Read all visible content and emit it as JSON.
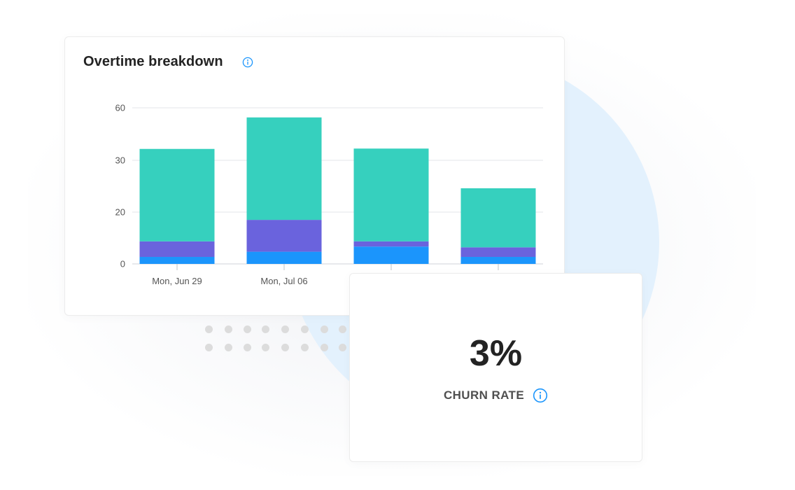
{
  "chart_card": {
    "title": "Overtime breakdown",
    "info_icon": "info-icon"
  },
  "churn_card": {
    "value": "3%",
    "label": "CHURN RATE",
    "info_icon": "info-icon"
  },
  "colors": {
    "teal": "#36d0be",
    "purple": "#6a63dd",
    "blue": "#1b95fc",
    "accent": "#1b95fc",
    "circle": "#e3f1fd"
  },
  "chart_data": {
    "type": "bar",
    "stacked": true,
    "title": "Overtime breakdown",
    "xlabel": "",
    "ylabel": "",
    "y_ticks": [
      "60",
      "30",
      "20",
      "0"
    ],
    "categories": [
      "Mon, Jun 29",
      "Mon, Jul 06",
      "",
      ""
    ],
    "series": [
      {
        "color": "#1b95fc",
        "values": [
          2.7,
          4.7,
          6.7,
          2.7
        ]
      },
      {
        "color": "#6a63dd",
        "values": [
          6.0,
          12.3,
          2.0,
          3.7
        ]
      },
      {
        "color": "#36d0be",
        "values": [
          27.8,
          37.5,
          28.0,
          18.2
        ]
      }
    ],
    "grid": true,
    "legend": "none"
  }
}
